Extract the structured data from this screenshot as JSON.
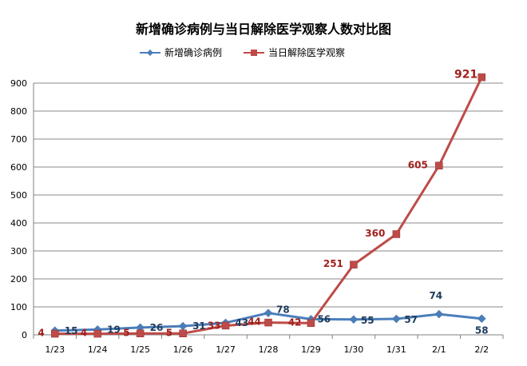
{
  "chart_data": {
    "type": "line",
    "title": "新增确诊病例与当日解除医学观察人数对比图",
    "xlabel": "",
    "ylabel": "",
    "categories": [
      "1/23",
      "1/24",
      "1/25",
      "1/26",
      "1/27",
      "1/28",
      "1/29",
      "1/30",
      "1/31",
      "2/1",
      "2/2"
    ],
    "ylim": [
      0,
      900
    ],
    "yticks": [
      0,
      100,
      200,
      300,
      400,
      500,
      600,
      700,
      800,
      900
    ],
    "grid": true,
    "legend_position": "top",
    "series": [
      {
        "name": "新增确诊病例",
        "color": "#4a7ebb",
        "marker": "diamond",
        "values": [
          15,
          19,
          26,
          31,
          43,
          78,
          56,
          55,
          57,
          74,
          58
        ]
      },
      {
        "name": "当日解除医学观察",
        "color": "#be4b48",
        "marker": "square",
        "values": [
          4,
          4,
          5,
          5,
          33,
          44,
          42,
          251,
          360,
          605,
          921
        ]
      }
    ]
  }
}
